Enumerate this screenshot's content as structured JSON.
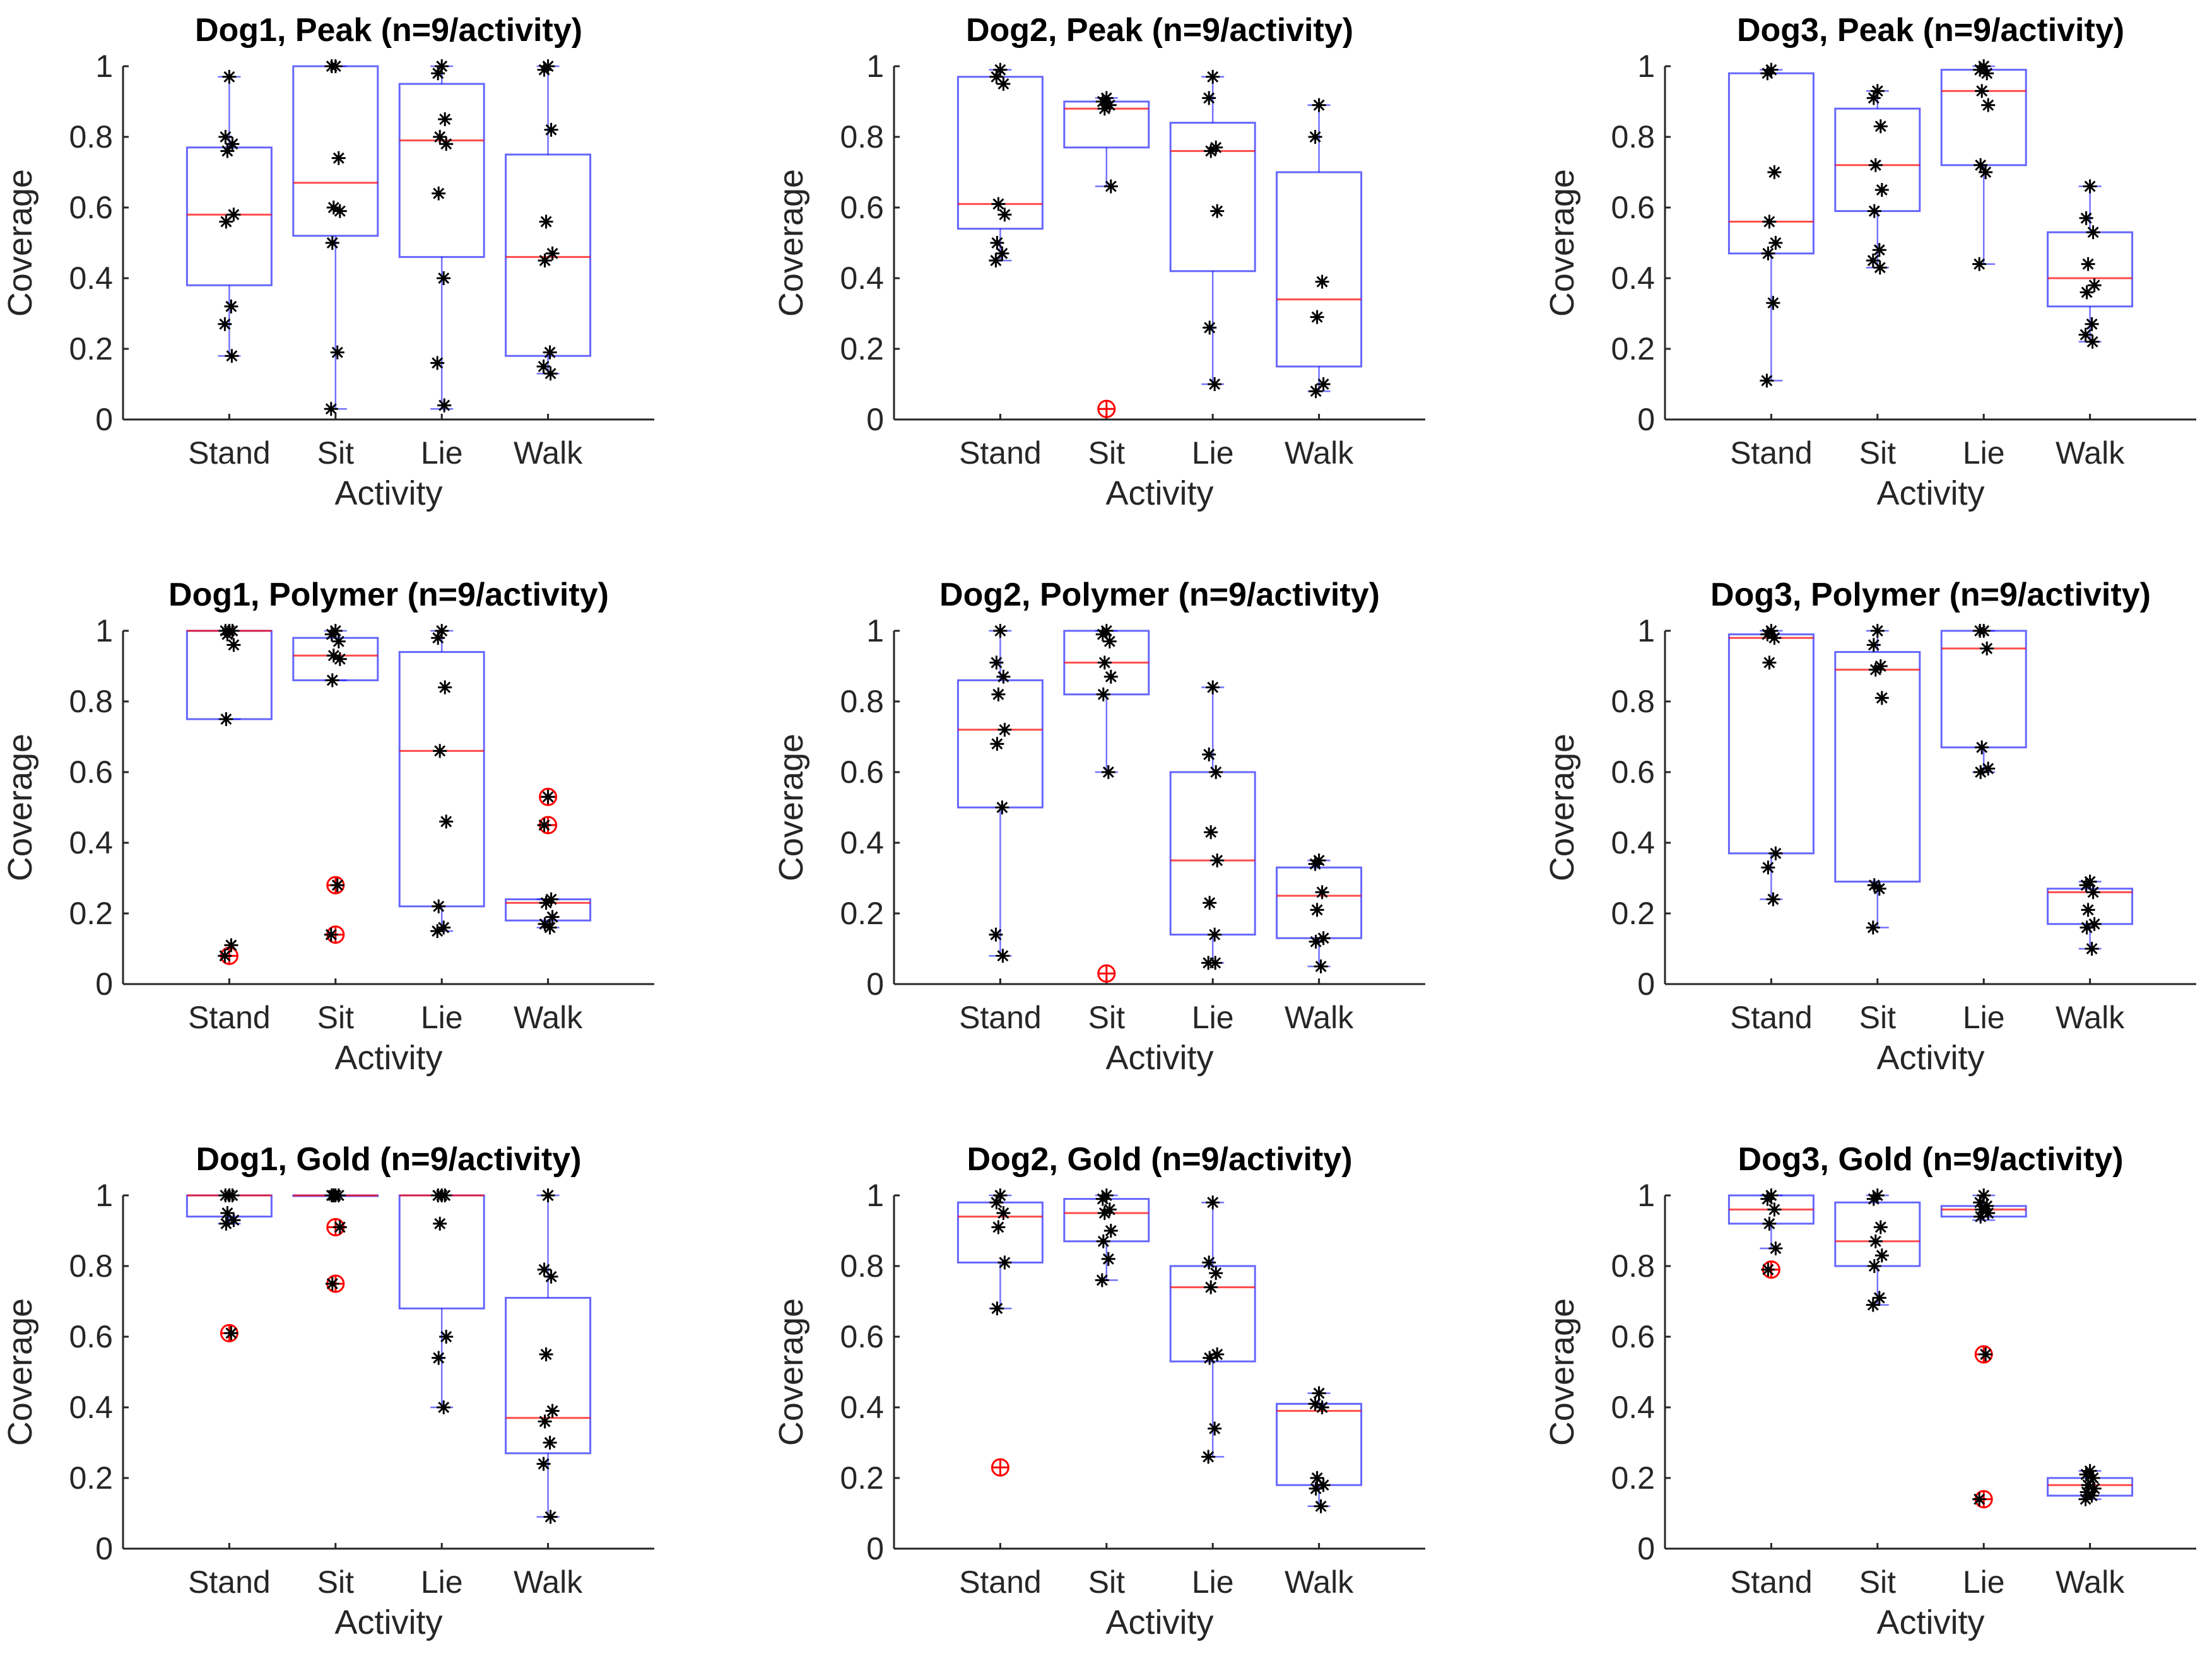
{
  "colors": {
    "box": "#0000ff",
    "median": "#ff0000",
    "points": "#000000",
    "outlier": "#ff0000",
    "text": "#262626",
    "axis": "#262626"
  },
  "chart_data": [
    {
      "type": "box",
      "title": "Dog1, Peak (n=9/activity)",
      "xlabel": "Activity",
      "ylabel": "Coverage",
      "ylim": [
        0,
        1
      ],
      "yticks": [
        "0",
        "0.2",
        "0.4",
        "0.6",
        "0.8",
        "1"
      ],
      "categories": [
        "Stand",
        "Sit",
        "Lie",
        "Walk"
      ],
      "boxes": [
        {
          "q1": 0.38,
          "median": 0.58,
          "q3": 0.77,
          "whisker_low": 0.18,
          "whisker_high": 0.97,
          "points": [
            0.97,
            0.8,
            0.78,
            0.76,
            0.58,
            0.56,
            0.32,
            0.27,
            0.18
          ],
          "outliers": []
        },
        {
          "q1": 0.52,
          "median": 0.67,
          "q3": 1.0,
          "whisker_low": 0.03,
          "whisker_high": 1.0,
          "points": [
            1.0,
            1.0,
            0.74,
            0.6,
            0.59,
            0.5,
            0.19,
            0.03
          ],
          "outliers": []
        },
        {
          "q1": 0.46,
          "median": 0.79,
          "q3": 0.95,
          "whisker_low": 0.03,
          "whisker_high": 1.0,
          "points": [
            1.0,
            0.98,
            0.85,
            0.8,
            0.78,
            0.64,
            0.4,
            0.16,
            0.04
          ],
          "outliers": []
        },
        {
          "q1": 0.18,
          "median": 0.46,
          "q3": 0.75,
          "whisker_low": 0.13,
          "whisker_high": 1.0,
          "points": [
            1.0,
            0.99,
            0.82,
            0.56,
            0.47,
            0.45,
            0.19,
            0.15,
            0.13
          ],
          "outliers": []
        }
      ]
    },
    {
      "type": "box",
      "title": "Dog2, Peak (n=9/activity)",
      "xlabel": "Activity",
      "ylabel": "Coverage",
      "ylim": [
        0,
        1
      ],
      "yticks": [
        "0",
        "0.2",
        "0.4",
        "0.6",
        "0.8",
        "1"
      ],
      "categories": [
        "Stand",
        "Sit",
        "Lie",
        "Walk"
      ],
      "boxes": [
        {
          "q1": 0.54,
          "median": 0.61,
          "q3": 0.97,
          "whisker_low": 0.45,
          "whisker_high": 0.99,
          "points": [
            0.99,
            0.97,
            0.95,
            0.61,
            0.58,
            0.5,
            0.47,
            0.45
          ],
          "outliers": []
        },
        {
          "q1": 0.77,
          "median": 0.88,
          "q3": 0.9,
          "whisker_low": 0.66,
          "whisker_high": 0.91,
          "points": [
            0.91,
            0.9,
            0.89,
            0.88,
            0.66
          ],
          "outliers": [
            0.03
          ]
        },
        {
          "q1": 0.42,
          "median": 0.76,
          "q3": 0.84,
          "whisker_low": 0.1,
          "whisker_high": 0.97,
          "points": [
            0.97,
            0.91,
            0.77,
            0.76,
            0.59,
            0.26,
            0.1
          ],
          "outliers": []
        },
        {
          "q1": 0.15,
          "median": 0.34,
          "q3": 0.7,
          "whisker_low": 0.08,
          "whisker_high": 0.89,
          "points": [
            0.89,
            0.8,
            0.39,
            0.29,
            0.1,
            0.08
          ],
          "outliers": []
        }
      ]
    },
    {
      "type": "box",
      "title": "Dog3, Peak (n=9/activity)",
      "xlabel": "Activity",
      "ylabel": "Coverage",
      "ylim": [
        0,
        1
      ],
      "yticks": [
        "0",
        "0.2",
        "0.4",
        "0.6",
        "0.8",
        "1"
      ],
      "categories": [
        "Stand",
        "Sit",
        "Lie",
        "Walk"
      ],
      "boxes": [
        {
          "q1": 0.47,
          "median": 0.56,
          "q3": 0.98,
          "whisker_low": 0.11,
          "whisker_high": 0.99,
          "points": [
            0.99,
            0.98,
            0.7,
            0.56,
            0.5,
            0.47,
            0.33,
            0.11
          ],
          "outliers": []
        },
        {
          "q1": 0.59,
          "median": 0.72,
          "q3": 0.88,
          "whisker_low": 0.43,
          "whisker_high": 0.93,
          "points": [
            0.93,
            0.91,
            0.83,
            0.72,
            0.65,
            0.59,
            0.48,
            0.45,
            0.43
          ],
          "outliers": []
        },
        {
          "q1": 0.72,
          "median": 0.93,
          "q3": 0.99,
          "whisker_low": 0.44,
          "whisker_high": 1.0,
          "points": [
            1.0,
            0.99,
            0.98,
            0.93,
            0.89,
            0.72,
            0.7,
            0.44
          ],
          "outliers": []
        },
        {
          "q1": 0.32,
          "median": 0.4,
          "q3": 0.53,
          "whisker_low": 0.22,
          "whisker_high": 0.66,
          "points": [
            0.66,
            0.57,
            0.53,
            0.44,
            0.38,
            0.36,
            0.27,
            0.24,
            0.22
          ],
          "outliers": []
        }
      ]
    },
    {
      "type": "box",
      "title": "Dog1, Polymer (n=9/activity)",
      "xlabel": "Activity",
      "ylabel": "Coverage",
      "ylim": [
        0,
        1
      ],
      "yticks": [
        "0",
        "0.2",
        "0.4",
        "0.6",
        "0.8",
        "1"
      ],
      "categories": [
        "Stand",
        "Sit",
        "Lie",
        "Walk"
      ],
      "boxes": [
        {
          "q1": 0.75,
          "median": 1.0,
          "q3": 1.0,
          "whisker_low": 0.75,
          "whisker_high": 1.0,
          "points": [
            1.0,
            1.0,
            1.0,
            0.99,
            0.96,
            0.75,
            0.11,
            0.08
          ],
          "outliers": [
            0.08
          ]
        },
        {
          "q1": 0.86,
          "median": 0.93,
          "q3": 0.98,
          "whisker_low": 0.86,
          "whisker_high": 1.0,
          "points": [
            1.0,
            0.99,
            0.97,
            0.93,
            0.92,
            0.86,
            0.28,
            0.14
          ],
          "outliers": [
            0.28,
            0.14
          ]
        },
        {
          "q1": 0.22,
          "median": 0.66,
          "q3": 0.94,
          "whisker_low": 0.15,
          "whisker_high": 1.0,
          "points": [
            1.0,
            0.98,
            0.84,
            0.66,
            0.46,
            0.22,
            0.16,
            0.15
          ],
          "outliers": []
        },
        {
          "q1": 0.18,
          "median": 0.23,
          "q3": 0.24,
          "whisker_low": 0.16,
          "whisker_high": 0.24,
          "points": [
            0.53,
            0.45,
            0.24,
            0.23,
            0.19,
            0.17,
            0.16
          ],
          "outliers": [
            0.53,
            0.45
          ]
        }
      ]
    },
    {
      "type": "box",
      "title": "Dog2, Polymer (n=9/activity)",
      "xlabel": "Activity",
      "ylabel": "Coverage",
      "ylim": [
        0,
        1
      ],
      "yticks": [
        "0",
        "0.2",
        "0.4",
        "0.6",
        "0.8",
        "1"
      ],
      "categories": [
        "Stand",
        "Sit",
        "Lie",
        "Walk"
      ],
      "boxes": [
        {
          "q1": 0.5,
          "median": 0.72,
          "q3": 0.86,
          "whisker_low": 0.08,
          "whisker_high": 1.0,
          "points": [
            1.0,
            0.91,
            0.87,
            0.82,
            0.72,
            0.68,
            0.5,
            0.14,
            0.08
          ],
          "outliers": []
        },
        {
          "q1": 0.82,
          "median": 0.91,
          "q3": 1.0,
          "whisker_low": 0.6,
          "whisker_high": 1.0,
          "points": [
            1.0,
            0.99,
            0.97,
            0.91,
            0.87,
            0.82,
            0.6
          ],
          "outliers": [
            0.03
          ]
        },
        {
          "q1": 0.14,
          "median": 0.35,
          "q3": 0.6,
          "whisker_low": 0.06,
          "whisker_high": 0.84,
          "points": [
            0.84,
            0.65,
            0.6,
            0.43,
            0.35,
            0.23,
            0.14,
            0.06,
            0.06
          ],
          "outliers": []
        },
        {
          "q1": 0.13,
          "median": 0.25,
          "q3": 0.33,
          "whisker_low": 0.05,
          "whisker_high": 0.35,
          "points": [
            0.35,
            0.34,
            0.26,
            0.21,
            0.13,
            0.12,
            0.05
          ],
          "outliers": []
        }
      ]
    },
    {
      "type": "box",
      "title": "Dog3, Polymer (n=9/activity)",
      "xlabel": "Activity",
      "ylabel": "Coverage",
      "ylim": [
        0,
        1
      ],
      "yticks": [
        "0",
        "0.2",
        "0.4",
        "0.6",
        "0.8",
        "1"
      ],
      "categories": [
        "Stand",
        "Sit",
        "Lie",
        "Walk"
      ],
      "boxes": [
        {
          "q1": 0.37,
          "median": 0.98,
          "q3": 0.99,
          "whisker_low": 0.24,
          "whisker_high": 1.0,
          "points": [
            1.0,
            0.99,
            0.98,
            0.91,
            0.37,
            0.33,
            0.24
          ],
          "outliers": []
        },
        {
          "q1": 0.29,
          "median": 0.89,
          "q3": 0.94,
          "whisker_low": 0.16,
          "whisker_high": 1.0,
          "points": [
            1.0,
            0.96,
            0.9,
            0.89,
            0.81,
            0.28,
            0.27,
            0.16
          ],
          "outliers": []
        },
        {
          "q1": 0.67,
          "median": 0.95,
          "q3": 1.0,
          "whisker_low": 0.6,
          "whisker_high": 1.0,
          "points": [
            1.0,
            1.0,
            0.95,
            0.67,
            0.61,
            0.6
          ],
          "outliers": []
        },
        {
          "q1": 0.17,
          "median": 0.26,
          "q3": 0.27,
          "whisker_low": 0.1,
          "whisker_high": 0.29,
          "points": [
            0.29,
            0.28,
            0.26,
            0.21,
            0.17,
            0.16,
            0.1
          ],
          "outliers": []
        }
      ]
    },
    {
      "type": "box",
      "title": "Dog1, Gold (n=9/activity)",
      "xlabel": "Activity",
      "ylabel": "Coverage",
      "ylim": [
        0,
        1
      ],
      "yticks": [
        "0",
        "0.2",
        "0.4",
        "0.6",
        "0.8",
        "1"
      ],
      "categories": [
        "Stand",
        "Sit",
        "Lie",
        "Walk"
      ],
      "boxes": [
        {
          "q1": 0.94,
          "median": 1.0,
          "q3": 1.0,
          "whisker_low": 0.92,
          "whisker_high": 1.0,
          "points": [
            1.0,
            1.0,
            1.0,
            0.95,
            0.93,
            0.92,
            0.61
          ],
          "outliers": [
            0.61
          ]
        },
        {
          "q1": 1.0,
          "median": 1.0,
          "q3": 1.0,
          "whisker_low": 1.0,
          "whisker_high": 1.0,
          "points": [
            1.0,
            1.0,
            1.0,
            1.0,
            0.91,
            0.75
          ],
          "outliers": [
            0.91,
            0.75
          ]
        },
        {
          "q1": 0.68,
          "median": 1.0,
          "q3": 1.0,
          "whisker_low": 0.4,
          "whisker_high": 1.0,
          "points": [
            1.0,
            1.0,
            1.0,
            0.92,
            0.6,
            0.54,
            0.4
          ],
          "outliers": []
        },
        {
          "q1": 0.27,
          "median": 0.37,
          "q3": 0.71,
          "whisker_low": 0.09,
          "whisker_high": 1.0,
          "points": [
            1.0,
            0.79,
            0.77,
            0.55,
            0.39,
            0.36,
            0.3,
            0.24,
            0.09
          ],
          "outliers": []
        }
      ]
    },
    {
      "type": "box",
      "title": "Dog2, Gold (n=9/activity)",
      "xlabel": "Activity",
      "ylabel": "Coverage",
      "ylim": [
        0,
        1
      ],
      "yticks": [
        "0",
        "0.2",
        "0.4",
        "0.6",
        "0.8",
        "1"
      ],
      "categories": [
        "Stand",
        "Sit",
        "Lie",
        "Walk"
      ],
      "boxes": [
        {
          "q1": 0.81,
          "median": 0.94,
          "q3": 0.98,
          "whisker_low": 0.68,
          "whisker_high": 1.0,
          "points": [
            1.0,
            0.98,
            0.95,
            0.91,
            0.81,
            0.68
          ],
          "outliers": [
            0.23
          ]
        },
        {
          "q1": 0.87,
          "median": 0.95,
          "q3": 0.99,
          "whisker_low": 0.76,
          "whisker_high": 1.0,
          "points": [
            1.0,
            0.99,
            0.96,
            0.95,
            0.9,
            0.87,
            0.82,
            0.76
          ],
          "outliers": []
        },
        {
          "q1": 0.53,
          "median": 0.74,
          "q3": 0.8,
          "whisker_low": 0.26,
          "whisker_high": 0.98,
          "points": [
            0.98,
            0.81,
            0.78,
            0.74,
            0.55,
            0.54,
            0.34,
            0.26
          ],
          "outliers": []
        },
        {
          "q1": 0.18,
          "median": 0.39,
          "q3": 0.41,
          "whisker_low": 0.12,
          "whisker_high": 0.44,
          "points": [
            0.44,
            0.41,
            0.4,
            0.2,
            0.18,
            0.17,
            0.12
          ],
          "outliers": []
        }
      ]
    },
    {
      "type": "box",
      "title": "Dog3, Gold (n=9/activity)",
      "xlabel": "Activity",
      "ylabel": "Coverage",
      "ylim": [
        0,
        1
      ],
      "yticks": [
        "0",
        "0.2",
        "0.4",
        "0.6",
        "0.8",
        "1"
      ],
      "categories": [
        "Stand",
        "Sit",
        "Lie",
        "Walk"
      ],
      "boxes": [
        {
          "q1": 0.92,
          "median": 0.96,
          "q3": 1.0,
          "whisker_low": 0.85,
          "whisker_high": 1.0,
          "points": [
            1.0,
            0.99,
            0.96,
            0.92,
            0.85,
            0.79
          ],
          "outliers": [
            0.79
          ]
        },
        {
          "q1": 0.8,
          "median": 0.87,
          "q3": 0.98,
          "whisker_low": 0.69,
          "whisker_high": 1.0,
          "points": [
            1.0,
            0.99,
            0.91,
            0.87,
            0.83,
            0.8,
            0.71,
            0.69
          ],
          "outliers": []
        },
        {
          "q1": 0.94,
          "median": 0.96,
          "q3": 0.97,
          "whisker_low": 0.93,
          "whisker_high": 1.0,
          "points": [
            1.0,
            0.98,
            0.97,
            0.96,
            0.95,
            0.94,
            0.55,
            0.14
          ],
          "outliers": [
            0.55,
            0.14
          ]
        },
        {
          "q1": 0.15,
          "median": 0.18,
          "q3": 0.2,
          "whisker_low": 0.14,
          "whisker_high": 0.22,
          "points": [
            0.22,
            0.21,
            0.2,
            0.18,
            0.17,
            0.16,
            0.15,
            0.14
          ],
          "outliers": []
        }
      ]
    }
  ]
}
